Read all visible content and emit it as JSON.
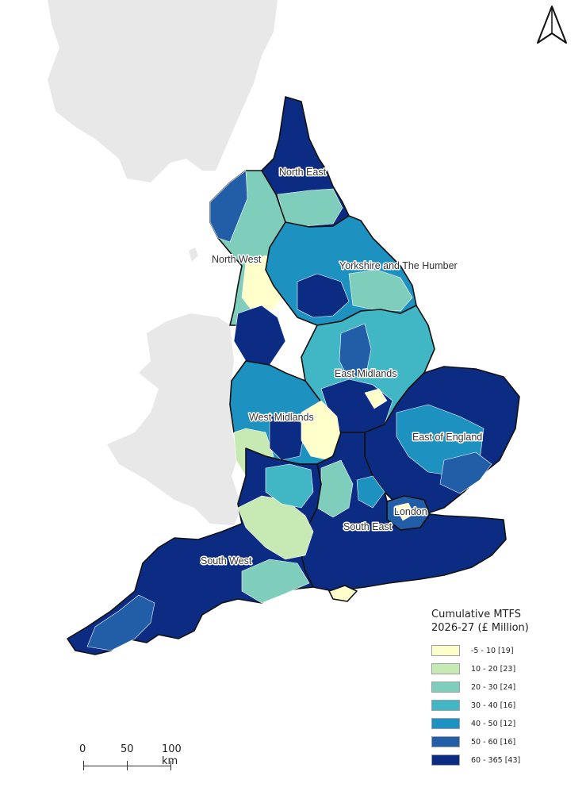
{
  "map": {
    "regions": [
      {
        "name": "North East"
      },
      {
        "name": "North West"
      },
      {
        "name": "Yorkshire and The Humber"
      },
      {
        "name": "East Midlands"
      },
      {
        "name": "West Midlands"
      },
      {
        "name": "East of England"
      },
      {
        "name": "London"
      },
      {
        "name": "South East"
      },
      {
        "name": "South West"
      }
    ],
    "background_land_color": "#e8e8e8",
    "border_color": "#111111"
  },
  "legend": {
    "title_line1": "Cumulative MTFS",
    "title_line2": "2026-27 (£ Million)",
    "classes": [
      {
        "label": "-5 - 10 [19]",
        "color": "#ffffcc"
      },
      {
        "label": "10 - 20 [23]",
        "color": "#c7e9b4"
      },
      {
        "label": "20 - 30 [24]",
        "color": "#7fcdbb"
      },
      {
        "label": "30 - 40 [16]",
        "color": "#41b6c4"
      },
      {
        "label": "40 - 50 [12]",
        "color": "#1d91c0"
      },
      {
        "label": "50 - 60 [16]",
        "color": "#225ea8"
      },
      {
        "label": "60 - 365 [43]",
        "color": "#0c2c84"
      }
    ]
  },
  "scalebar": {
    "labels": [
      "0",
      "50",
      "100 km"
    ]
  },
  "north_arrow": {
    "icon": "north-arrow-icon"
  }
}
